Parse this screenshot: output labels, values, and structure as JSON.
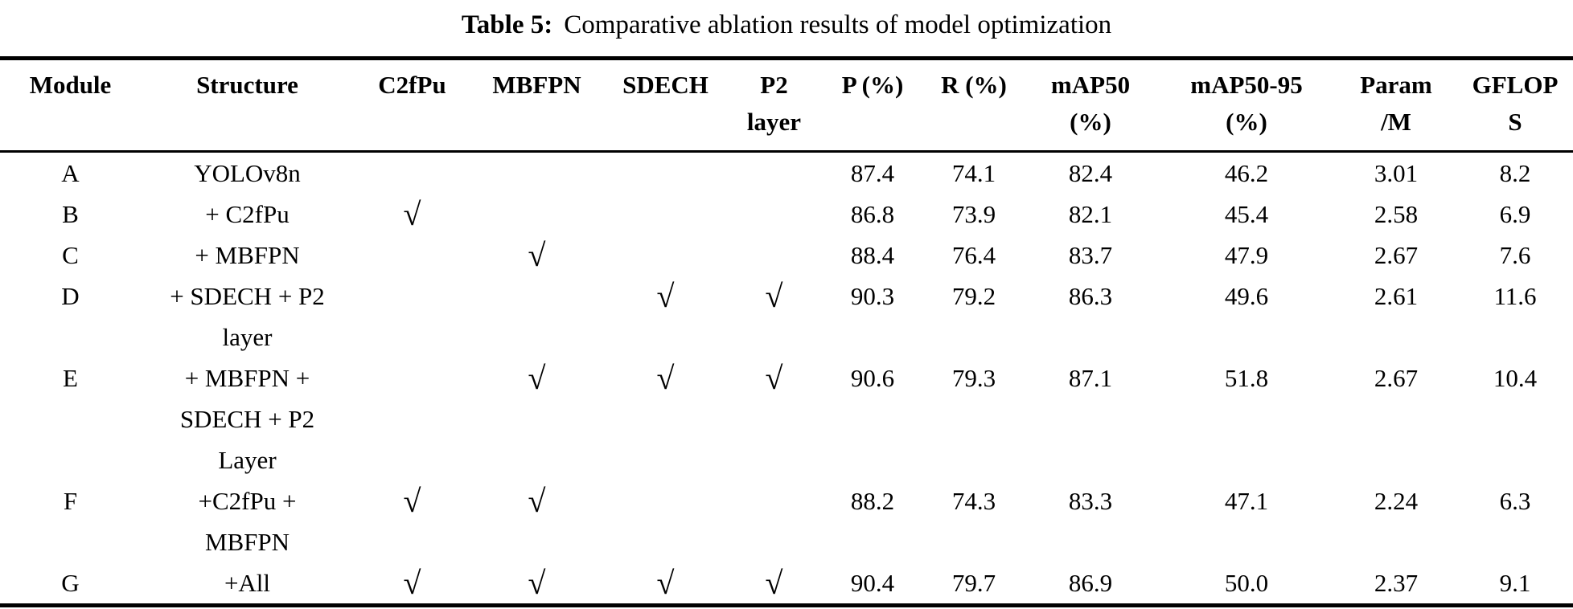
{
  "caption": {
    "label": "Table 5:",
    "text": "Comparative ablation results of model optimization"
  },
  "table": {
    "check_glyph": "√",
    "columns": [
      {
        "key": "module",
        "lines": [
          "Module"
        ]
      },
      {
        "key": "structure",
        "lines": [
          "Structure"
        ]
      },
      {
        "key": "c2fpu",
        "lines": [
          "C2fPu"
        ]
      },
      {
        "key": "mbfpn",
        "lines": [
          "MBFPN"
        ]
      },
      {
        "key": "sdech",
        "lines": [
          "SDECH"
        ]
      },
      {
        "key": "p2-layer",
        "lines": [
          "P2",
          "layer"
        ]
      },
      {
        "key": "p-pct",
        "lines": [
          "P (%)"
        ]
      },
      {
        "key": "r-pct",
        "lines": [
          "R (%)"
        ]
      },
      {
        "key": "map50",
        "lines": [
          "mAP50",
          "(%)"
        ]
      },
      {
        "key": "map50-95",
        "lines": [
          "mAP50-95",
          "(%)"
        ]
      },
      {
        "key": "param-m",
        "lines": [
          "Param",
          "/M"
        ]
      },
      {
        "key": "gflops",
        "lines": [
          "GFLOP",
          "S"
        ]
      }
    ],
    "rows": [
      {
        "module": "A",
        "structure": [
          "YOLOv8n"
        ],
        "checks": [
          false,
          false,
          false,
          false
        ],
        "values": [
          "87.4",
          "74.1",
          "82.4",
          "46.2",
          "3.01",
          "8.2"
        ]
      },
      {
        "module": "B",
        "structure": [
          "+ C2fPu"
        ],
        "checks": [
          true,
          false,
          false,
          false
        ],
        "values": [
          "86.8",
          "73.9",
          "82.1",
          "45.4",
          "2.58",
          "6.9"
        ]
      },
      {
        "module": "C",
        "structure": [
          "+ MBFPN"
        ],
        "checks": [
          false,
          true,
          false,
          false
        ],
        "values": [
          "88.4",
          "76.4",
          "83.7",
          "47.9",
          "2.67",
          "7.6"
        ]
      },
      {
        "module": "D",
        "structure": [
          "+ SDECH + P2",
          "layer"
        ],
        "checks": [
          false,
          false,
          true,
          true
        ],
        "values": [
          "90.3",
          "79.2",
          "86.3",
          "49.6",
          "2.61",
          "11.6"
        ]
      },
      {
        "module": "E",
        "structure": [
          "+ MBFPN +",
          "SDECH + P2",
          "Layer"
        ],
        "checks": [
          false,
          true,
          true,
          true
        ],
        "values": [
          "90.6",
          "79.3",
          "87.1",
          "51.8",
          "2.67",
          "10.4"
        ]
      },
      {
        "module": "F",
        "structure": [
          "+C2fPu +",
          "MBFPN"
        ],
        "checks": [
          true,
          true,
          false,
          false
        ],
        "values": [
          "88.2",
          "74.3",
          "83.3",
          "47.1",
          "2.24",
          "6.3"
        ]
      },
      {
        "module": "G",
        "structure": [
          "+All"
        ],
        "checks": [
          true,
          true,
          true,
          true
        ],
        "values": [
          "90.4",
          "79.7",
          "86.9",
          "50.0",
          "2.37",
          "9.1"
        ]
      }
    ]
  }
}
